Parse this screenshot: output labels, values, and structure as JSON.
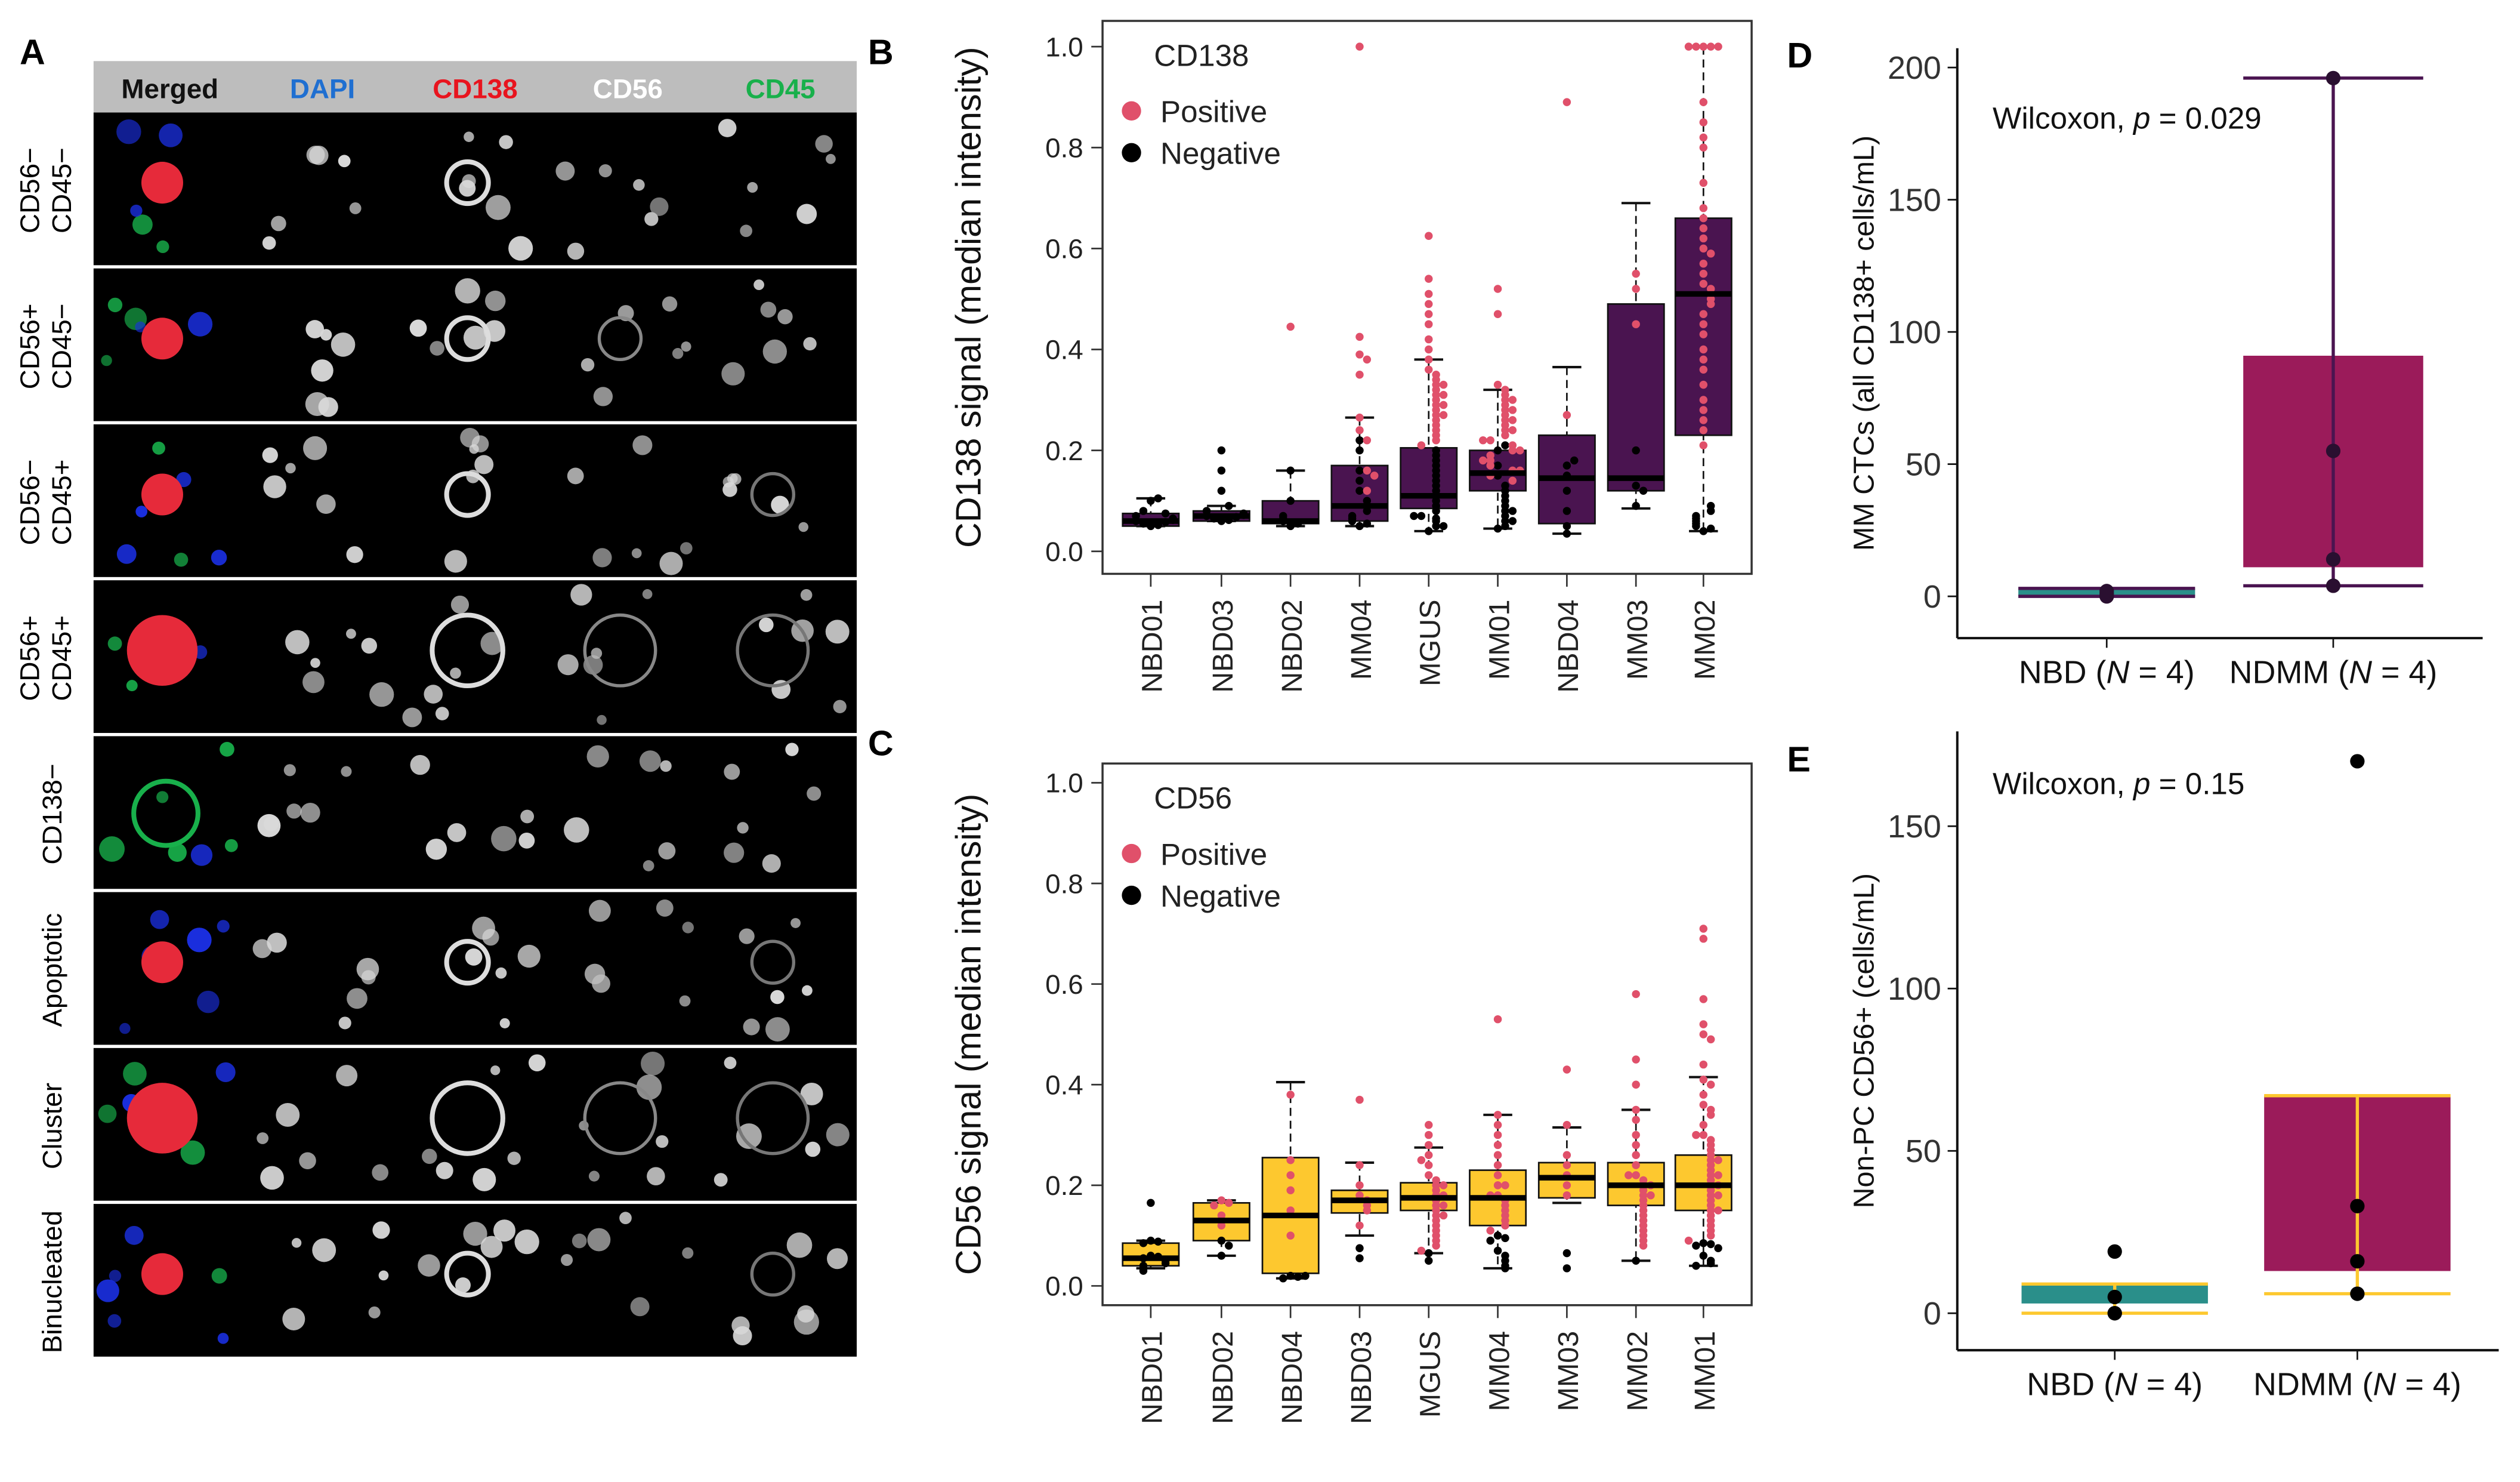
{
  "panel_labels": {
    "a": "A",
    "b": "B",
    "c": "C",
    "d": "D",
    "e": "E"
  },
  "panel_a": {
    "channels": [
      {
        "label": "Merged",
        "color": "#111111"
      },
      {
        "label": "DAPI",
        "color": "#1f6fd1"
      },
      {
        "label": "CD138",
        "color": "#e8141e"
      },
      {
        "label": "CD56",
        "color": "#ffffff"
      },
      {
        "label": "CD45",
        "color": "#18b04b"
      }
    ],
    "rows": [
      "CD56−\nCD45−",
      "CD56+\nCD45−",
      "CD56−\nCD45+",
      "CD56+\nCD45+",
      "CD138−",
      "Apoptotic",
      "Cluster",
      "Binucleated"
    ]
  },
  "chart_data": [
    {
      "id": "B",
      "type": "box+beeswarm",
      "title": "CD138",
      "ylabel": "CD138 signal (median intensity)",
      "ylim": [
        0,
        1
      ],
      "yticks": [
        "0.0",
        "0.2",
        "0.4",
        "0.6",
        "0.8",
        "1.0"
      ],
      "legend": [
        {
          "label": "Positive",
          "color": "#e0506a"
        },
        {
          "label": "Negative",
          "color": "#000000"
        }
      ],
      "legend_position": "top-left",
      "box_color": "#4a1450",
      "categories": [
        "NBD01",
        "NBD03",
        "NBD02",
        "MM04",
        "MGUS",
        "MM01",
        "NBD04",
        "MM03",
        "MM02"
      ],
      "boxes": [
        [
          0.05,
          0.05,
          0.06,
          0.075,
          0.105
        ],
        [
          0.06,
          0.06,
          0.07,
          0.08,
          0.09
        ],
        [
          0.05,
          0.055,
          0.06,
          0.1,
          0.16
        ],
        [
          0.05,
          0.06,
          0.09,
          0.17,
          0.265
        ],
        [
          0.04,
          0.085,
          0.11,
          0.205,
          0.38
        ],
        [
          0.045,
          0.12,
          0.155,
          0.2,
          0.32
        ],
        [
          0.035,
          0.055,
          0.145,
          0.23,
          0.365
        ],
        [
          0.085,
          0.12,
          0.145,
          0.49,
          0.69
        ],
        [
          0.04,
          0.23,
          0.51,
          0.66,
          1.0
        ]
      ],
      "pos": [
        [],
        [],
        [
          0.445
        ],
        [
          1.0,
          0.425,
          0.39,
          0.38,
          0.35,
          0.265,
          0.24,
          0.22,
          0.16,
          0.15,
          0.12
        ],
        [
          0.625,
          0.54,
          0.51,
          0.49,
          0.47,
          0.45,
          0.42,
          0.4,
          0.38,
          0.36,
          0.35,
          0.34,
          0.33,
          0.32,
          0.31,
          0.3,
          0.29,
          0.28,
          0.27,
          0.26,
          0.25,
          0.24,
          0.23,
          0.22,
          0.21,
          0.33,
          0.31,
          0.29,
          0.27
        ],
        [
          0.52,
          0.47,
          0.33,
          0.32,
          0.31,
          0.3,
          0.29,
          0.28,
          0.27,
          0.26,
          0.25,
          0.24,
          0.23,
          0.22,
          0.21,
          0.2,
          0.19,
          0.18,
          0.17,
          0.16,
          0.15,
          0.14,
          0.3,
          0.28,
          0.26,
          0.24,
          0.22,
          0.2,
          0.18,
          0.16
        ],
        [
          0.89,
          0.27
        ],
        [
          0.55,
          0.52,
          0.45
        ],
        [
          1,
          1,
          1,
          1,
          1,
          0.89,
          0.85,
          0.82,
          0.8,
          0.73,
          0.68,
          0.66,
          0.64,
          0.62,
          0.6,
          0.59,
          0.57,
          0.55,
          0.53,
          0.52,
          0.51,
          0.5,
          0.49,
          0.47,
          0.45,
          0.43,
          0.4,
          0.38,
          0.36,
          0.33,
          0.3,
          0.28,
          0.26,
          0.24,
          0.21
        ]
      ],
      "neg": [
        [
          0.05,
          0.052,
          0.055,
          0.058,
          0.06,
          0.062,
          0.065,
          0.07,
          0.075,
          0.08,
          0.1,
          0.105
        ],
        [
          0.06,
          0.062,
          0.065,
          0.068,
          0.07,
          0.072,
          0.075,
          0.08,
          0.09,
          0.12,
          0.16,
          0.2
        ],
        [
          0.05,
          0.055,
          0.06,
          0.065,
          0.07,
          0.1,
          0.16
        ],
        [
          0.05,
          0.055,
          0.06,
          0.065,
          0.07,
          0.08,
          0.09,
          0.1,
          0.12,
          0.14,
          0.16,
          0.2,
          0.22
        ],
        [
          0.04,
          0.05,
          0.06,
          0.065,
          0.07,
          0.08,
          0.09,
          0.1,
          0.11,
          0.12,
          0.13,
          0.14,
          0.15,
          0.16,
          0.17,
          0.18,
          0.19,
          0.2,
          0.05,
          0.07
        ],
        [
          0.045,
          0.05,
          0.06,
          0.07,
          0.08,
          0.09,
          0.1,
          0.11,
          0.12,
          0.13,
          0.15,
          0.17,
          0.2,
          0.21,
          0.06,
          0.08
        ],
        [
          0.035,
          0.05,
          0.08,
          0.12,
          0.15,
          0.17,
          0.18
        ],
        [
          0.2,
          0.13,
          0.12,
          0.09
        ],
        [
          0.04,
          0.045,
          0.05,
          0.055,
          0.06,
          0.065,
          0.07,
          0.08,
          0.09
        ]
      ]
    },
    {
      "id": "C",
      "type": "box+beeswarm",
      "title": "CD56",
      "ylabel": "CD56 signal (median intensity)",
      "ylim": [
        0,
        1
      ],
      "yticks": [
        "0.0",
        "0.2",
        "0.4",
        "0.6",
        "0.8",
        "1.0"
      ],
      "legend": [
        {
          "label": "Positive",
          "color": "#e0506a"
        },
        {
          "label": "Negative",
          "color": "#000000"
        }
      ],
      "legend_position": "top-left",
      "box_color": "#fdc82f",
      "categories": [
        "NBD01",
        "NBD02",
        "NBD04",
        "NBD03",
        "MGUS",
        "MM04",
        "MM03",
        "MM02",
        "MM01"
      ],
      "boxes": [
        [
          0.035,
          0.04,
          0.055,
          0.085,
          0.09
        ],
        [
          0.06,
          0.09,
          0.13,
          0.165,
          0.17
        ],
        [
          0.015,
          0.025,
          0.14,
          0.255,
          0.405
        ],
        [
          0.1,
          0.145,
          0.17,
          0.19,
          0.245
        ],
        [
          0.065,
          0.15,
          0.175,
          0.205,
          0.275
        ],
        [
          0.035,
          0.12,
          0.175,
          0.23,
          0.34
        ],
        [
          0.165,
          0.175,
          0.215,
          0.245,
          0.315
        ],
        [
          0.05,
          0.16,
          0.2,
          0.245,
          0.35
        ],
        [
          0.04,
          0.15,
          0.2,
          0.26,
          0.415
        ]
      ],
      "pos": [
        [],
        [
          0.17,
          0.165,
          0.16,
          0.14,
          0.12
        ],
        [
          0.38,
          0.25,
          0.22,
          0.19,
          0.15,
          0.1
        ],
        [
          0.37,
          0.24,
          0.2,
          0.18,
          0.17,
          0.16,
          0.15,
          0.12
        ],
        [
          0.32,
          0.3,
          0.28,
          0.26,
          0.24,
          0.22,
          0.21,
          0.2,
          0.19,
          0.18,
          0.17,
          0.16,
          0.15,
          0.14,
          0.13,
          0.12,
          0.11,
          0.1,
          0.09,
          0.08,
          0.07,
          0.25,
          0.2,
          0.18,
          0.16,
          0.14
        ],
        [
          0.53,
          0.34,
          0.32,
          0.3,
          0.28,
          0.26,
          0.24,
          0.22,
          0.2,
          0.18,
          0.17,
          0.16,
          0.15,
          0.14,
          0.13,
          0.12,
          0.11,
          0.2,
          0.18
        ],
        [
          0.43,
          0.32,
          0.26,
          0.24,
          0.22,
          0.2,
          0.18
        ],
        [
          0.58,
          0.45,
          0.4,
          0.35,
          0.33,
          0.3,
          0.28,
          0.26,
          0.24,
          0.22,
          0.21,
          0.2,
          0.19,
          0.18,
          0.17,
          0.16,
          0.15,
          0.14,
          0.13,
          0.12,
          0.11,
          0.1,
          0.09,
          0.08,
          0.22,
          0.2,
          0.18
        ],
        [
          0.71,
          0.69,
          0.57,
          0.52,
          0.5,
          0.49,
          0.44,
          0.41,
          0.4,
          0.38,
          0.36,
          0.35,
          0.34,
          0.32,
          0.3,
          0.29,
          0.28,
          0.27,
          0.26,
          0.25,
          0.24,
          0.23,
          0.22,
          0.21,
          0.2,
          0.19,
          0.18,
          0.17,
          0.16,
          0.15,
          0.14,
          0.13,
          0.12,
          0.11,
          0.1,
          0.09,
          0.3,
          0.25,
          0.2,
          0.15,
          0.22,
          0.18
        ]
      ],
      "neg": [
        [
          0.165,
          0.09,
          0.088,
          0.085,
          0.06,
          0.058,
          0.055,
          0.05,
          0.045,
          0.04,
          0.035,
          0.03
        ],
        [
          0.09,
          0.08,
          0.06
        ],
        [
          0.02,
          0.018,
          0.015,
          0.02
        ],
        [
          0.075,
          0.055
        ],
        [
          0.065,
          0.05
        ],
        [
          0.1,
          0.095,
          0.09,
          0.07,
          0.06,
          0.05,
          0.04,
          0.035
        ],
        [
          0.065,
          0.035
        ],
        [
          0.05
        ],
        [
          0.085,
          0.083,
          0.08,
          0.075,
          0.06,
          0.05,
          0.045,
          0.04
        ]
      ]
    },
    {
      "id": "D",
      "type": "box",
      "ylabel": "MM CTCs (all CD138+ cells/mL)",
      "ylim": [
        0,
        200
      ],
      "yticks": [
        "0",
        "50",
        "100",
        "150",
        "200"
      ],
      "annotation": "Wilcoxon, p = 0.029",
      "annotation_prefix": "Wilcoxon, ",
      "annotation_p": "p",
      "annotation_value": " = 0.029",
      "categories": [
        "NBD (N = 4)",
        "NDMM (N = 4)"
      ],
      "category_parts": [
        [
          "NBD (",
          "N",
          " = 4)"
        ],
        [
          "NDMM (",
          "N",
          " = 4)"
        ]
      ],
      "boxes": [
        [
          0,
          0,
          1,
          3,
          3
        ],
        [
          4,
          11,
          55,
          91,
          196
        ]
      ],
      "points": [
        [
          0,
          0,
          1,
          2
        ],
        [
          196,
          55,
          14,
          4
        ]
      ],
      "box_colors": [
        "#2a8f8a",
        "#9b1b5a"
      ],
      "line_colors": [
        "#4a1450",
        "#4a1450"
      ]
    },
    {
      "id": "E",
      "type": "box",
      "ylabel": "Non-PC CD56+ (cells/mL)",
      "ylim": [
        0,
        175
      ],
      "yticks": [
        "0",
        "50",
        "100",
        "150"
      ],
      "annotation": "Wilcoxon, p = 0.15",
      "annotation_prefix": "Wilcoxon, ",
      "annotation_p": "p",
      "annotation_value": " = 0.15",
      "categories": [
        "NBD (N = 4)",
        "NDMM (N = 4)"
      ],
      "category_parts": [
        [
          "NBD (",
          "N",
          " = 4)"
        ],
        [
          "NDMM (",
          "N",
          " = 4)"
        ]
      ],
      "boxes": [
        [
          0,
          3,
          5,
          9,
          9
        ],
        [
          6,
          13,
          33,
          67,
          67
        ]
      ],
      "points": [
        [
          19,
          5,
          0,
          0
        ],
        [
          170,
          33,
          16,
          6
        ]
      ],
      "box_colors": [
        "#2a8f8a",
        "#9b1b5a"
      ],
      "line_colors": [
        "#fdc82f",
        "#fdc82f"
      ]
    }
  ]
}
